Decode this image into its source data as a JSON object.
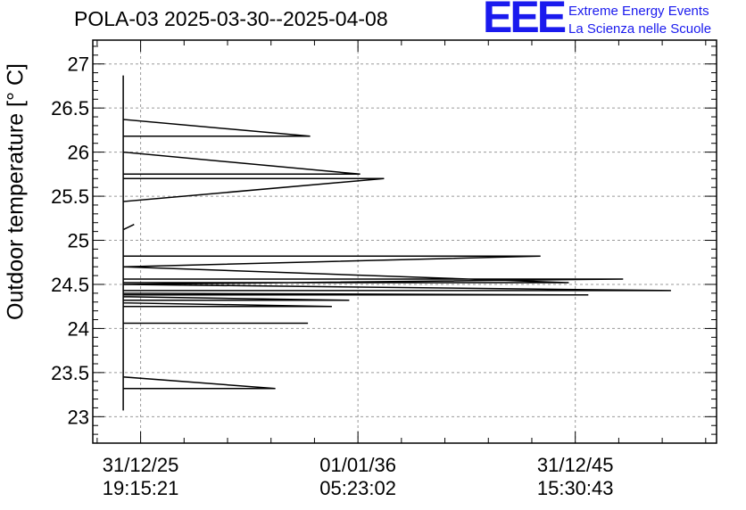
{
  "title": "POLA-03 2025-03-30--2025-04-08",
  "logo": {
    "mark": "EEE",
    "line1": "Extreme Energy Events",
    "line2": "La Scienza nelle Scuole",
    "color": "#1a1aee"
  },
  "chart_data": {
    "type": "line",
    "ylabel": "Outdoor temperature [° C]",
    "ylim": [
      22.7,
      27.27
    ],
    "xlim": [
      -0.22,
      2.65
    ],
    "grid": true,
    "y_ticks": [
      23,
      23.5,
      24,
      24.5,
      25,
      25.5,
      26,
      26.5,
      27
    ],
    "y_tick_labels": [
      "23",
      "23.5",
      "24",
      "24.5",
      "25",
      "25.5",
      "26",
      "26.5",
      "27"
    ],
    "x_ticks": [
      {
        "x": 0,
        "date": "31/12/25",
        "time": "19:15:21"
      },
      {
        "x": 1,
        "date": "01/01/36",
        "time": "05:23:02"
      },
      {
        "x": 2,
        "date": "31/12/45",
        "time": "15:30:43"
      }
    ],
    "x_minor_step": 0.2,
    "series": [
      {
        "color": "#000000",
        "points": [
          [
            -0.08,
            26.87
          ],
          [
            -0.08,
            23.07
          ],
          [
            -0.08,
            26.55
          ],
          [
            -0.08,
            26.37
          ],
          [
            0.78,
            26.18
          ],
          [
            -0.08,
            26.18
          ],
          [
            -0.08,
            26.0
          ],
          [
            1.01,
            25.75
          ],
          [
            -0.08,
            25.75
          ],
          [
            -0.08,
            25.7
          ],
          [
            1.12,
            25.7
          ],
          [
            -0.08,
            25.44
          ],
          [
            -0.08,
            25.12
          ],
          [
            -0.03,
            25.18
          ],
          [
            -0.08,
            25.12
          ],
          [
            -0.08,
            24.82
          ],
          [
            1.84,
            24.82
          ],
          [
            -0.08,
            24.7
          ],
          [
            1.97,
            24.52
          ],
          [
            -0.08,
            24.52
          ],
          [
            -0.08,
            24.56
          ],
          [
            2.22,
            24.56
          ],
          [
            -0.08,
            24.5
          ],
          [
            2.44,
            24.43
          ],
          [
            -0.08,
            24.43
          ],
          [
            -0.08,
            24.4
          ],
          [
            2.06,
            24.38
          ],
          [
            -0.08,
            24.38
          ],
          [
            -0.08,
            24.36
          ],
          [
            0.96,
            24.32
          ],
          [
            -0.08,
            24.32
          ],
          [
            -0.08,
            24.29
          ],
          [
            0.88,
            24.25
          ],
          [
            -0.08,
            24.25
          ],
          [
            -0.08,
            24.06
          ],
          [
            0.77,
            24.06
          ],
          [
            -0.08,
            24.06
          ],
          [
            -0.08,
            23.45
          ],
          [
            0.62,
            23.32
          ],
          [
            -0.08,
            23.32
          ],
          [
            -0.08,
            23.07
          ]
        ]
      }
    ]
  }
}
